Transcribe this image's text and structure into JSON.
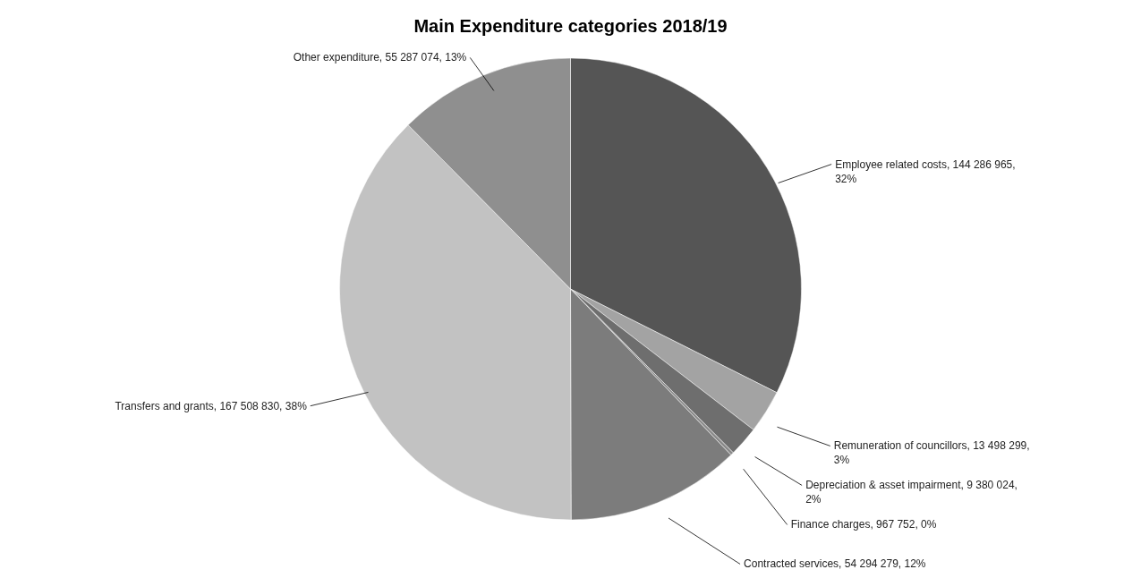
{
  "chart_data": {
    "type": "pie",
    "title": "Main Expenditure categories  2018/19",
    "categories": [
      "Employee related costs",
      "Remuneration of councillors",
      "Depreciation & asset impairment",
      "Finance charges",
      "Contracted services",
      "Transfers and grants",
      "Other expenditure"
    ],
    "values": [
      144286965,
      13498299,
      9380024,
      967752,
      54294279,
      167508830,
      55287074
    ],
    "value_labels": [
      "144 286 965, 32%",
      "13 498 299, 3%",
      "9 380 024, 2%",
      "967 752, 0%",
      "54 294 279, 12%",
      "167 508 830, 38%",
      "55 287 074, 13%"
    ],
    "colors": [
      "#555555",
      "#a3a3a3",
      "#6e6e6e",
      "#8a8a8a",
      "#7c7c7c",
      "#c2c2c2",
      "#8f8f8f"
    ],
    "legend": false
  }
}
